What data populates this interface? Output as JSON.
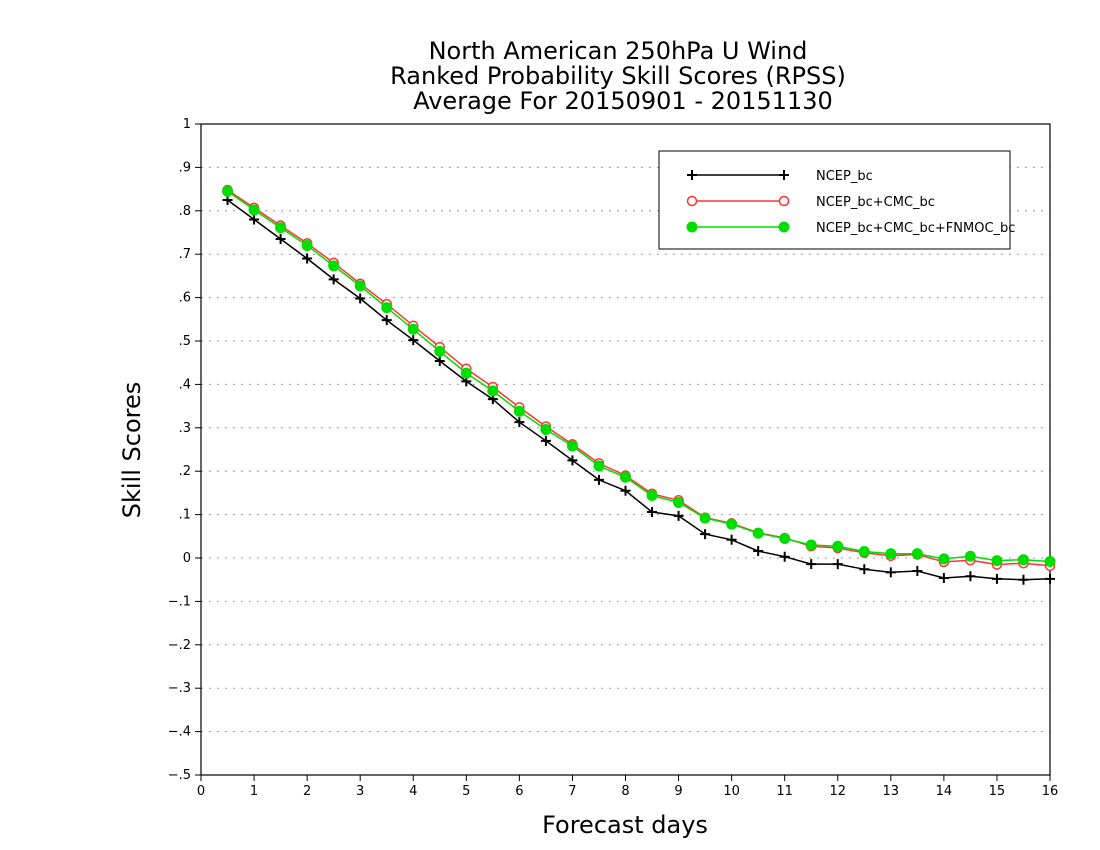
{
  "chart_data": {
    "type": "line",
    "title": [
      "North American 250hPa U Wind",
      "Ranked Probability Skill Scores (RPSS)",
      "Average For 20150901 - 20151130"
    ],
    "xlabel": "Forecast days",
    "ylabel": "Skill Scores",
    "xlim": [
      0,
      16
    ],
    "ylim": [
      -0.5,
      1
    ],
    "x_ticks": [
      0,
      1,
      2,
      3,
      4,
      5,
      6,
      7,
      8,
      9,
      10,
      11,
      12,
      13,
      14,
      15,
      16
    ],
    "y_ticks": [
      -0.5,
      -0.4,
      -0.3,
      -0.2,
      -0.1,
      0,
      0.1,
      0.2,
      0.3,
      0.4,
      0.5,
      0.6,
      0.7,
      0.8,
      0.9,
      1
    ],
    "grid": "horizontal dotted",
    "legend_position": "top-right",
    "x": [
      0.5,
      1,
      1.5,
      2,
      2.5,
      3,
      3.5,
      4,
      4.5,
      5,
      5.5,
      6,
      6.5,
      7,
      7.5,
      8,
      8.5,
      9,
      9.5,
      10,
      10.5,
      11,
      11.5,
      12,
      12.5,
      13,
      13.5,
      14,
      14.5,
      15,
      15.5,
      16
    ],
    "series": [
      {
        "name": "NCEP_bc",
        "color": "#000000",
        "marker": "plus",
        "values": [
          0.825,
          0.78,
          0.735,
          0.69,
          0.642,
          0.598,
          0.548,
          0.502,
          0.454,
          0.407,
          0.366,
          0.313,
          0.27,
          0.225,
          0.18,
          0.155,
          0.106,
          0.097,
          0.055,
          0.042,
          0.016,
          0.003,
          -0.014,
          -0.014,
          -0.026,
          -0.033,
          -0.03,
          -0.046,
          -0.042,
          -0.048,
          -0.05,
          -0.048
        ]
      },
      {
        "name": "NCEP_bc+CMC_bc",
        "color": "#ff3333",
        "marker": "open-circle",
        "values": [
          0.848,
          0.807,
          0.766,
          0.725,
          0.68,
          0.632,
          0.585,
          0.535,
          0.486,
          0.436,
          0.394,
          0.347,
          0.303,
          0.262,
          0.218,
          0.19,
          0.148,
          0.133,
          0.093,
          0.08,
          0.058,
          0.046,
          0.027,
          0.023,
          0.012,
          0.005,
          0.008,
          -0.009,
          -0.005,
          -0.015,
          -0.012,
          -0.018
        ]
      },
      {
        "name": "NCEP_bc+CMC_bc+FNMOC_bc",
        "color": "#00dd00",
        "marker": "filled-circle",
        "values": [
          0.845,
          0.802,
          0.761,
          0.72,
          0.673,
          0.627,
          0.577,
          0.527,
          0.476,
          0.426,
          0.385,
          0.338,
          0.296,
          0.258,
          0.212,
          0.186,
          0.144,
          0.128,
          0.092,
          0.078,
          0.057,
          0.045,
          0.03,
          0.027,
          0.015,
          0.01,
          0.01,
          -0.002,
          0.004,
          -0.006,
          -0.004,
          -0.008
        ]
      }
    ]
  }
}
